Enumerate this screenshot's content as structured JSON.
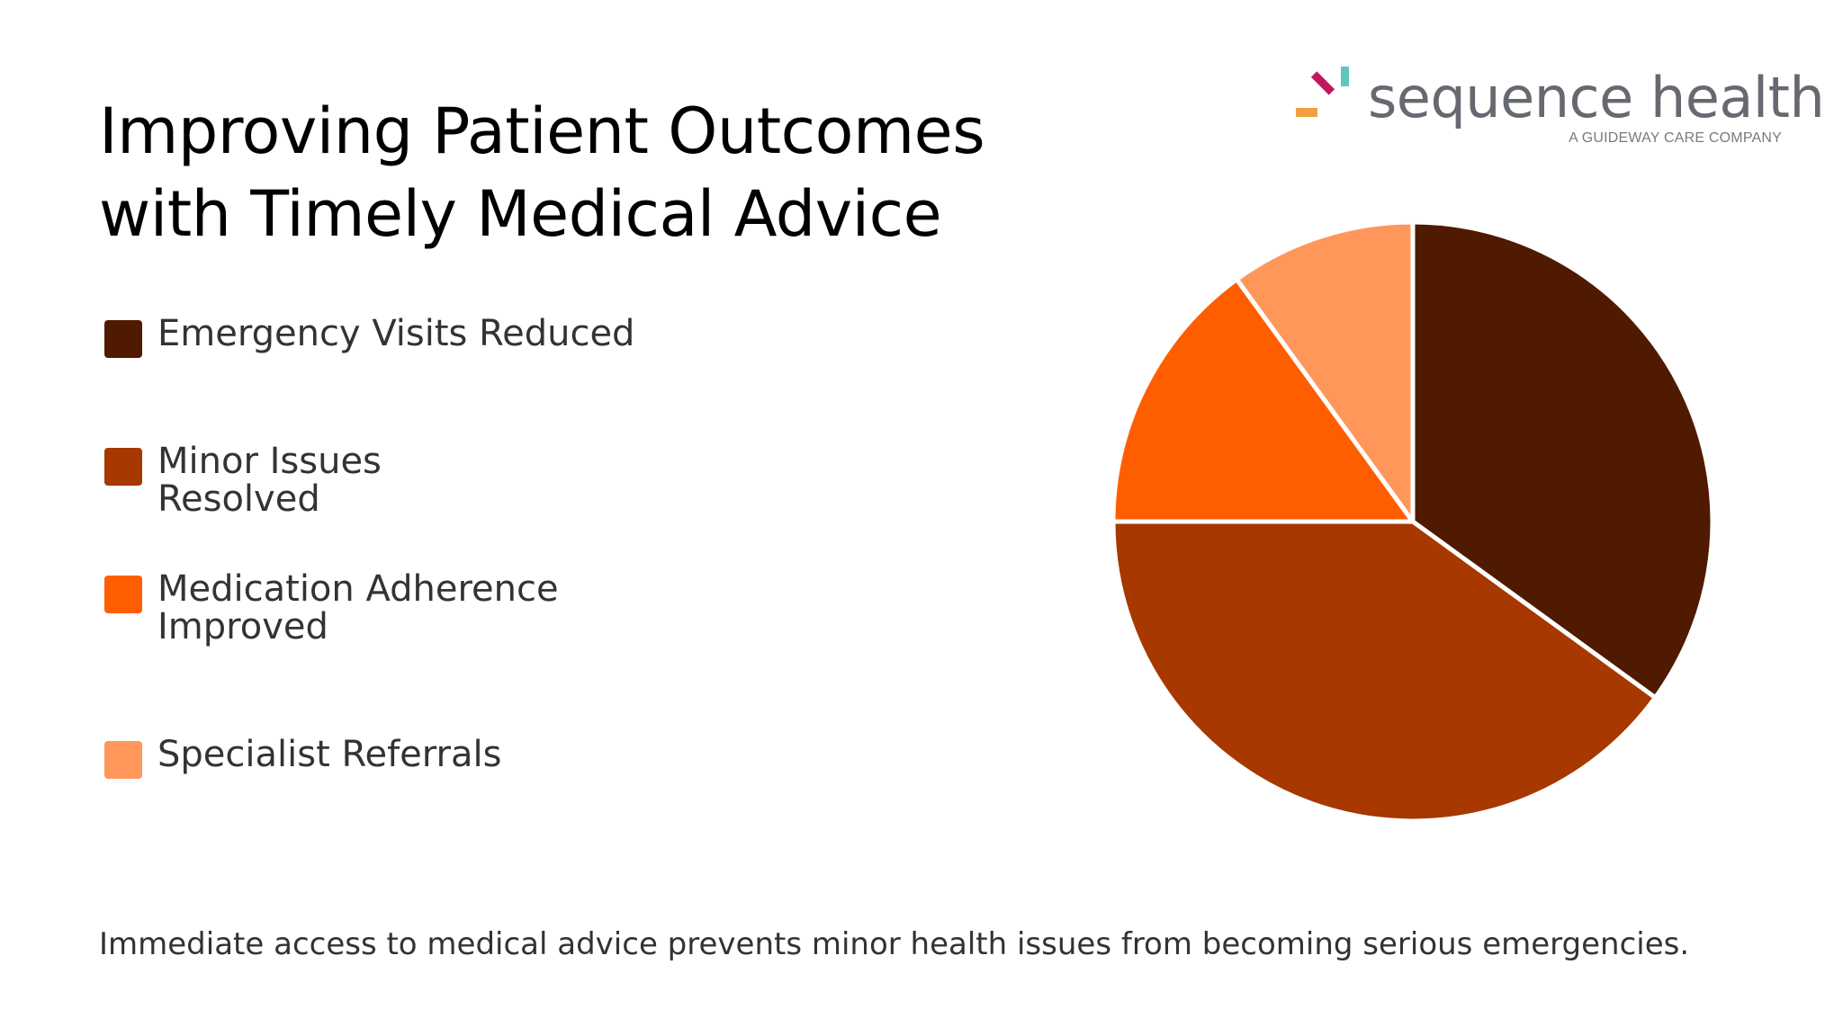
{
  "title_lines": [
    "Improving Patient Outcomes",
    "with Timely Medical Advice"
  ],
  "logo": {
    "wordmark": "sequence health",
    "tagline": "A GUIDEWAY CARE COMPANY",
    "mark_colors": [
      "#c2185b",
      "#5ec7b9",
      "#f0a040"
    ]
  },
  "chart_data": {
    "type": "pie",
    "title": "",
    "categories": [
      "Emergency Visits Reduced",
      "Minor Issues Resolved",
      "Medication Adherence Improved",
      "Specialist Referrals"
    ],
    "values": [
      35,
      40,
      15,
      10
    ],
    "colors": [
      "#4f1a00",
      "#a63800",
      "#ff5e00",
      "#ff975a"
    ],
    "start_angle_deg": 0,
    "direction": "clockwise",
    "slice_border_color": "#ffffff",
    "legend_position": "left"
  },
  "legend": {
    "items": [
      {
        "label": "Emergency Visits Reduced",
        "color": "#4f1a00"
      },
      {
        "label": "Minor Issues Resolved",
        "color": "#a63800"
      },
      {
        "label": "Medication Adherence Improved",
        "color": "#ff5e00"
      },
      {
        "label": "Specialist Referrals",
        "color": "#ff975a"
      }
    ]
  },
  "footer_text": "Immediate access to medical advice prevents minor health issues from becoming serious emergencies."
}
